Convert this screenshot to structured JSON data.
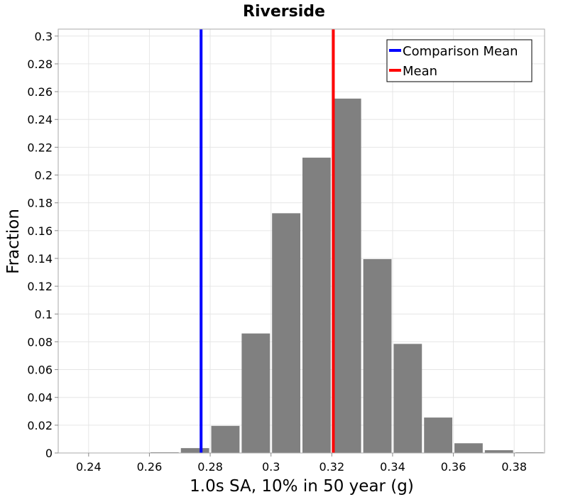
{
  "chart_data": {
    "type": "bar",
    "title": "Riverside",
    "xlabel": "1.0s SA, 10% in 50 year (g)",
    "ylabel": "Fraction",
    "xlim": [
      0.23,
      0.39
    ],
    "ylim": [
      0,
      0.305
    ],
    "x_ticks": [
      "0.24",
      "0.26",
      "0.28",
      "0.3",
      "0.32",
      "0.34",
      "0.36",
      "0.38"
    ],
    "y_ticks": [
      "0",
      "0.02",
      "0.04",
      "0.06",
      "0.08",
      "0.1",
      "0.12",
      "0.14",
      "0.16",
      "0.18",
      "0.2",
      "0.22",
      "0.24",
      "0.26",
      "0.28",
      "0.3"
    ],
    "bin_width": 0.01,
    "bin_centers": [
      0.235,
      0.245,
      0.255,
      0.265,
      0.275,
      0.285,
      0.295,
      0.305,
      0.315,
      0.325,
      0.335,
      0.345,
      0.355,
      0.365,
      0.375,
      0.385
    ],
    "values": [
      0.0,
      0.0,
      0.0,
      0.0005,
      0.0035,
      0.0195,
      0.086,
      0.1725,
      0.2125,
      0.255,
      0.1395,
      0.0785,
      0.0255,
      0.007,
      0.002,
      0.0005
    ],
    "bar_color": "#808080",
    "grid": true,
    "legend_position": "top-right",
    "lines": [
      {
        "name": "Comparison Mean",
        "x": 0.277,
        "color": "#0000ff"
      },
      {
        "name": "Mean",
        "x": 0.3205,
        "color": "#ff0000"
      }
    ]
  }
}
